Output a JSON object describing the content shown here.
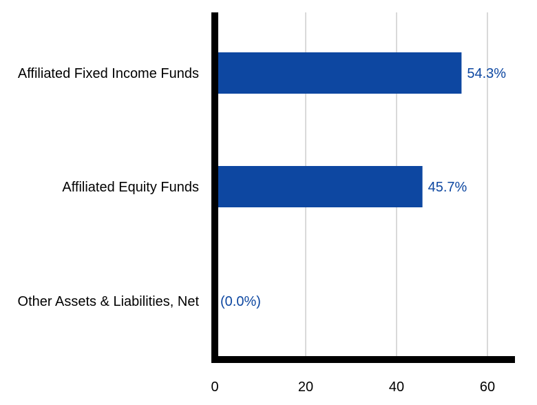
{
  "chart_data": {
    "type": "bar",
    "orientation": "horizontal",
    "categories": [
      "Affiliated Fixed Income Funds",
      "Affiliated Equity Funds",
      "Other Assets & Liabilities, Net"
    ],
    "values": [
      54.3,
      45.7,
      0.0
    ],
    "value_labels": [
      "54.3%",
      "45.7%",
      "(0.0%)"
    ],
    "xlim": [
      0,
      66
    ],
    "xticks": [
      0,
      20,
      40,
      60
    ],
    "xtick_labels": [
      "0",
      "20",
      "40",
      "60"
    ],
    "grid": "vertical",
    "title": "",
    "xlabel": "",
    "ylabel": "",
    "colors": {
      "bar": "#0d47a1",
      "label": "#0d47a1",
      "grid": "#d9d9d9",
      "axis": "#000000"
    }
  }
}
